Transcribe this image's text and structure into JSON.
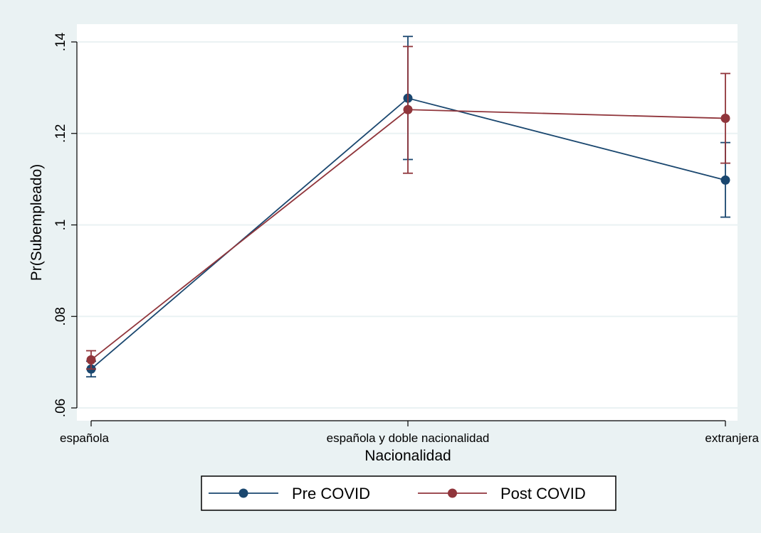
{
  "chart_data": {
    "type": "line",
    "title": "",
    "xlabel": "Nacionalidad",
    "ylabel": "Pr(Subempleado)",
    "categories": [
      "española",
      "española y doble nacionalidad",
      "extranjera"
    ],
    "ylim": [
      0.06,
      0.14
    ],
    "yticks": [
      0.06,
      0.08,
      0.1,
      0.12,
      0.14
    ],
    "ytick_labels": [
      ".06",
      ".08",
      ".1",
      ".12",
      ".14"
    ],
    "grid": true,
    "legend_position": "bottom",
    "series": [
      {
        "name": "Pre COVID",
        "color": "#1a476f",
        "values": [
          0.0685,
          0.1277,
          0.1098
        ],
        "ci_low": [
          0.0668,
          0.1143,
          0.1017
        ],
        "ci_high": [
          0.0702,
          0.1412,
          0.118
        ]
      },
      {
        "name": "Post COVID",
        "color": "#90353b",
        "values": [
          0.0705,
          0.1252,
          0.1233
        ],
        "ci_low": [
          0.0685,
          0.1113,
          0.1135
        ],
        "ci_high": [
          0.0725,
          0.139,
          0.1331
        ]
      }
    ]
  }
}
